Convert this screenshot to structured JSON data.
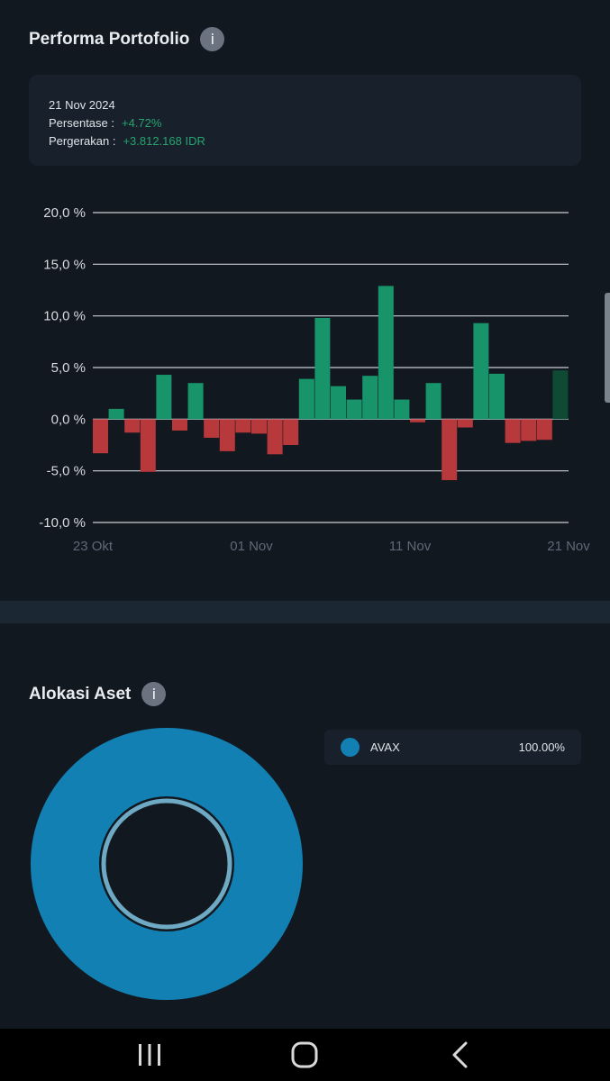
{
  "performance": {
    "title": "Performa Portofolio",
    "info_glyph": "i",
    "tooltip": {
      "date": "21 Nov 2024",
      "percent_label": "Persentase :",
      "percent_value": "+4.72%",
      "movement_label": "Pergerakan :",
      "movement_value": "+3.812.168 IDR"
    }
  },
  "chart_data": {
    "type": "bar",
    "ylim": [
      -10,
      20
    ],
    "yticks": [
      20,
      15,
      10,
      5,
      0,
      -5,
      -10
    ],
    "ytick_labels": [
      "20,0 %",
      "15,0 %",
      "10,0 %",
      "5,0 %",
      "0,0 %",
      "-5,0 %",
      "-10,0 %"
    ],
    "xtick_labels": [
      "23 Okt",
      "01 Nov",
      "11 Nov",
      "21 Nov"
    ],
    "xtick_positions": [
      0,
      10,
      20,
      30
    ],
    "values": [
      -3.3,
      1.0,
      -1.3,
      -5.1,
      4.3,
      -1.1,
      3.5,
      -1.8,
      -3.1,
      -1.3,
      -1.4,
      -3.4,
      -2.5,
      3.9,
      9.8,
      3.2,
      1.9,
      4.2,
      12.9,
      1.9,
      -0.3,
      3.5,
      -5.9,
      -0.8,
      9.3,
      4.4,
      -2.3,
      -2.1,
      -2.0,
      4.72
    ],
    "colors": {
      "positive": "#17946a",
      "negative": "#b8393b",
      "selected": "#0f4a35",
      "grid": "#c9ced4"
    },
    "selected_index": 29
  },
  "allocation": {
    "title": "Alokasi Aset",
    "info_glyph": "i",
    "items": [
      {
        "name": "AVAX",
        "percent": "100.00%",
        "color": "#1280b3"
      }
    ]
  }
}
